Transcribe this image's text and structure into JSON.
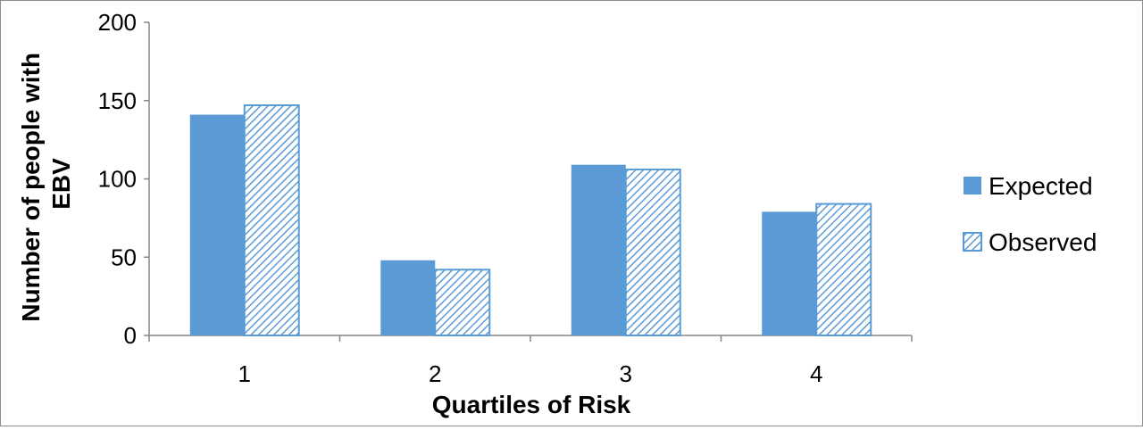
{
  "chart_data": {
    "type": "bar",
    "title": "",
    "xlabel": "Quartiles of Risk",
    "ylabel": "Number of people with EBV",
    "ylabel_lines": [
      "Number of people with",
      "EBV"
    ],
    "categories": [
      "1",
      "2",
      "3",
      "4"
    ],
    "yticks": [
      0,
      50,
      100,
      150,
      200
    ],
    "ylim": [
      0,
      200
    ],
    "grid": false,
    "legend_position": "right",
    "series": [
      {
        "name": "Expected",
        "values": [
          141,
          48,
          109,
          79
        ],
        "color": "#5b9bd5",
        "pattern": "solid"
      },
      {
        "name": "Observed",
        "values": [
          147,
          42,
          106,
          84
        ],
        "color": "#5b9bd5",
        "pattern": "diagonal-hatch"
      }
    ]
  }
}
